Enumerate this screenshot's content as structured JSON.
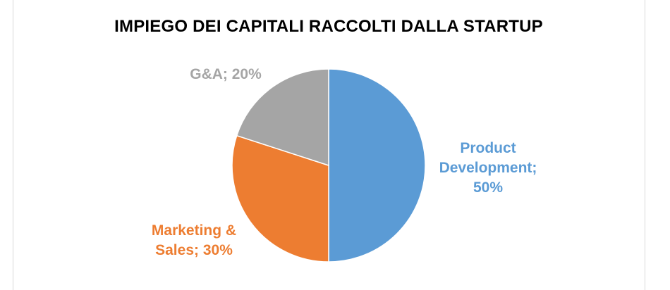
{
  "chart_data": {
    "type": "pie",
    "title": "IMPIEGO DEI CAPITALI RACCOLTI DALLA STARTUP",
    "slices": [
      {
        "label": "Product Development",
        "value": 50,
        "color": "#5b9bd5",
        "text_lines": [
          "Product",
          "Development;",
          "50%"
        ]
      },
      {
        "label": "Marketing & Sales",
        "value": 30,
        "color": "#ed7d31",
        "text_lines": [
          "Marketing &",
          "Sales; 30%"
        ]
      },
      {
        "label": "G&A",
        "value": 20,
        "color": "#a5a5a5",
        "text_lines": [
          "G&A; 20%"
        ]
      }
    ],
    "legend": "none"
  }
}
